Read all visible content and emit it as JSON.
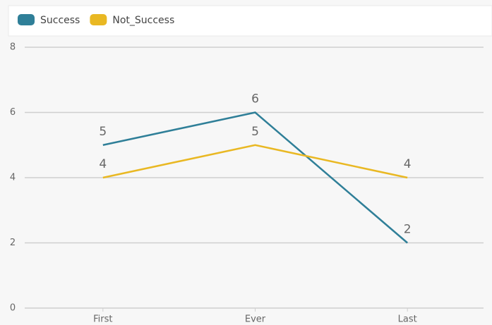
{
  "chart_data": {
    "type": "line",
    "categories": [
      "First",
      "Ever",
      "Last"
    ],
    "series": [
      {
        "name": "Success",
        "color": "#2f7f98",
        "values": [
          5,
          6,
          2
        ]
      },
      {
        "name": "Not_Success",
        "color": "#e9b823",
        "values": [
          4,
          5,
          4
        ]
      }
    ],
    "ylim": [
      0,
      8
    ],
    "yticks": [
      0,
      2,
      4,
      6,
      8
    ],
    "grid": true,
    "legend": "top"
  }
}
